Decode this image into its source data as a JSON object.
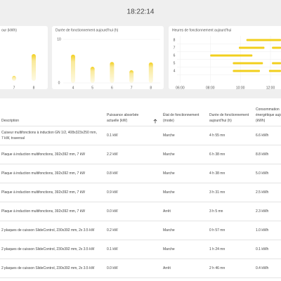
{
  "header": {
    "time": "18:22:14"
  },
  "charts": [
    {
      "type": "bar",
      "title": "our (kWh)",
      "categories": [
        "7",
        "8"
      ],
      "values": [
        1.2,
        6.6
      ],
      "color": "#f2cf1d"
    },
    {
      "type": "bar",
      "title": "Durée de fonctionnement aujourd'hui (h)",
      "categories": [
        "4",
        "5",
        "6",
        "7",
        "8"
      ],
      "values": [
        6.5,
        3.7,
        4.8,
        2.9,
        4.7
      ],
      "ylim": [
        0,
        10
      ],
      "yticks": [
        0,
        10
      ],
      "color": "#f2cf1d"
    },
    {
      "type": "timeline",
      "title": "Heures de fonctionnement aujourd'hui",
      "xlim": [
        5.7,
        12.7
      ],
      "ylim": [
        3.5,
        8.5
      ],
      "yticks": [
        8,
        7,
        6,
        5,
        4
      ],
      "xticks": [
        {
          "value": 6,
          "label": "06:00"
        },
        {
          "value": 8,
          "label": "08:00"
        },
        {
          "value": 10,
          "label": "10:00"
        },
        {
          "value": 12,
          "label": "12:00"
        }
      ],
      "rows": [
        {
          "y": 8,
          "segments": [
            [
              10.4,
              12.7
            ]
          ]
        },
        {
          "y": 7,
          "segments": [
            [
              9.9,
              11.6
            ],
            [
              12.1,
              12.7
            ]
          ]
        },
        {
          "y": 6,
          "segments": [
            [
              8.0,
              10.8
            ]
          ]
        },
        {
          "y": 5,
          "segments": [
            [
              9.5,
              11.5
            ],
            [
              12.1,
              12.7
            ]
          ]
        },
        {
          "y": 4,
          "segments": [
            [
              9.5,
              11.3
            ],
            [
              11.9,
              12.7
            ]
          ]
        }
      ],
      "color": "#f2cf1d"
    }
  ],
  "table": {
    "columns": [
      "Description",
      "Puissance absorbée actuelle (kW)",
      "État de fonctionnement (mode)",
      "Durée de fonctionnement aujourd'hui (h)",
      "Consommation énergétique aujourd'hui (kWh)"
    ],
    "rows": [
      [
        "Cuiseur multifonctions à induction GN 1/2, 408x323x250 mm, 7 kW, traversal",
        "0.1 kW",
        "Marche",
        "4 h 55 mn",
        "6.6 kWh"
      ],
      [
        "Plaque à induction multifonctions, 392x392 mm, 7 kW",
        "2.2 kW",
        "Marche",
        "6 h 38 mn",
        "8.8 kWh"
      ],
      [
        "Plaque à induction multifonctions, 392x392 mm, 7 kW",
        "0.8 kW",
        "Marche",
        "4 h 38 mn",
        "5.0 kWh"
      ],
      [
        "Plaque à induction multifonctions, 392x392 mm, 7 kW",
        "0.9 kW",
        "Marche",
        "3 h 31 mn",
        "2.5 kWh"
      ],
      [
        "Plaque à induction multifonctions, 392x392 mm, 7 kW",
        "0.0 kW",
        "Arrêt",
        "3 h 5 mn",
        "2.3 kWh"
      ],
      [
        "2 plaques de cuisson SlideControl, 230x392 mm, 2x 3.5 kW",
        "0.2 kW",
        "Marche",
        "0 h 57 mn",
        "1.0 kWh"
      ],
      [
        "2 plaques de cuisson SlideControl, 230x392 mm, 2x 3.5 kW",
        "0.1 kW",
        "Marche",
        "1 h 24 mn",
        "0.1 kWh"
      ],
      [
        "2 plaques de cuisson SlideControl, 230x392 mm, 2x 3.5 kW",
        "0.0 kW",
        "Arrêt",
        "2 h 46 mn",
        "0.4 kWh"
      ]
    ]
  }
}
